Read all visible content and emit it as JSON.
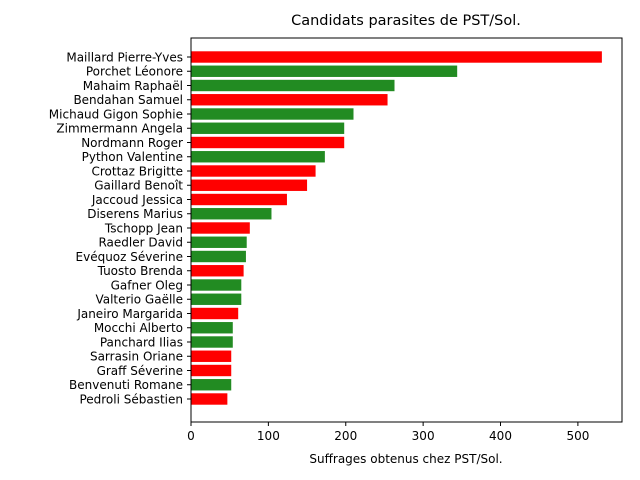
{
  "chart_data": {
    "type": "bar",
    "orientation": "horizontal",
    "title": "Candidats parasites de PST/Sol.",
    "xlabel": "Suffrages obtenus chez PST/Sol.",
    "ylabel": "",
    "xlim": [
      0,
      557
    ],
    "xticks": [
      0,
      100,
      200,
      300,
      400,
      500
    ],
    "grid": false,
    "categories": [
      "Maillard Pierre-Yves",
      "Porchet Léonore",
      "Mahaim Raphaël",
      "Bendahan Samuel",
      "Michaud Gigon Sophie",
      "Zimmermann Angela",
      "Nordmann Roger",
      "Python Valentine",
      "Crottaz Brigitte",
      "Gaillard Benoît",
      "Jaccoud Jessica",
      "Diserens Marius",
      "Tschopp Jean",
      "Raedler David",
      "Evéquoz Séverine",
      "Tuosto Brenda",
      "Gafner Oleg",
      "Valterio Gaëlle",
      "Janeiro Margarida",
      "Mocchi Alberto",
      "Panchard Ilias",
      "Sarrasin Oriane",
      "Graff Séverine",
      "Benvenuti Romane",
      "Pedroli Sébastien"
    ],
    "values": [
      531,
      344,
      263,
      254,
      210,
      198,
      198,
      173,
      161,
      150,
      124,
      104,
      76,
      72,
      71,
      68,
      65,
      65,
      61,
      54,
      54,
      52,
      52,
      52,
      47
    ],
    "colors": [
      "#ff0000",
      "#228b22",
      "#228b22",
      "#ff0000",
      "#228b22",
      "#228b22",
      "#ff0000",
      "#228b22",
      "#ff0000",
      "#ff0000",
      "#ff0000",
      "#228b22",
      "#ff0000",
      "#228b22",
      "#228b22",
      "#ff0000",
      "#228b22",
      "#228b22",
      "#ff0000",
      "#228b22",
      "#228b22",
      "#ff0000",
      "#ff0000",
      "#228b22",
      "#ff0000"
    ]
  }
}
